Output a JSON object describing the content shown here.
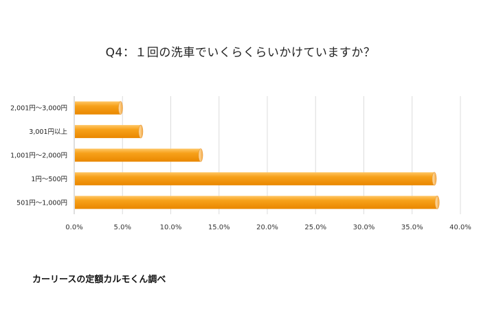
{
  "chart_data": {
    "type": "bar",
    "orientation": "horizontal",
    "title": "Q4：１回の洗車でいくらくらいかけていますか？",
    "categories": [
      "2,001円～3,000円",
      "3,001円以上",
      "1,001円～2,000円",
      "1円～500円",
      "501円～1,000円"
    ],
    "values": [
      4.8,
      6.9,
      13.1,
      37.3,
      37.6
    ],
    "x_ticks": [
      "0.0%",
      "5.0%",
      "10.0%",
      "15.0%",
      "20.0%",
      "25.0%",
      "30.0%",
      "35.0%",
      "40.0%"
    ],
    "xlim": [
      0,
      40
    ],
    "grid": true,
    "bar_color": "#f59c00",
    "legend": "none"
  },
  "source_note": "カーリースの定額カルモくん調べ"
}
